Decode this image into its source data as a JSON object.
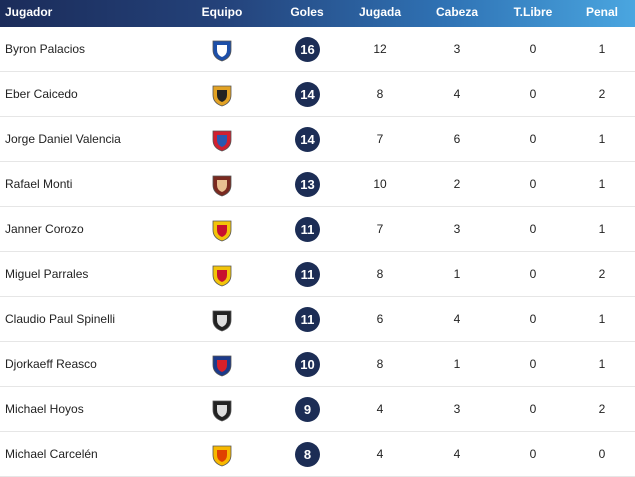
{
  "table": {
    "headers": [
      "Jugador",
      "Equipo",
      "Goles",
      "Jugada",
      "Cabeza",
      "T.Libre",
      "Penal"
    ],
    "rows": [
      {
        "player": "Byron Palacios",
        "goles": 16,
        "jugada": 12,
        "cabeza": 3,
        "tlibre": 0,
        "penal": 1
      },
      {
        "player": "Eber Caicedo",
        "goles": 14,
        "jugada": 8,
        "cabeza": 4,
        "tlibre": 0,
        "penal": 2
      },
      {
        "player": "Jorge Daniel Valencia",
        "goles": 14,
        "jugada": 7,
        "cabeza": 6,
        "tlibre": 0,
        "penal": 1
      },
      {
        "player": "Rafael Monti",
        "goles": 13,
        "jugada": 10,
        "cabeza": 2,
        "tlibre": 0,
        "penal": 1
      },
      {
        "player": "Janner Corozo",
        "goles": 11,
        "jugada": 7,
        "cabeza": 3,
        "tlibre": 0,
        "penal": 1
      },
      {
        "player": "Miguel Parrales",
        "goles": 11,
        "jugada": 8,
        "cabeza": 1,
        "tlibre": 0,
        "penal": 2
      },
      {
        "player": "Claudio Paul Spinelli",
        "goles": 11,
        "jugada": 6,
        "cabeza": 4,
        "tlibre": 0,
        "penal": 1
      },
      {
        "player": "Djorkaeff Reasco",
        "goles": 10,
        "jugada": 8,
        "cabeza": 1,
        "tlibre": 0,
        "penal": 1
      },
      {
        "player": "Michael Hoyos",
        "goles": 9,
        "jugada": 4,
        "cabeza": 3,
        "tlibre": 0,
        "penal": 2
      },
      {
        "player": "Michael Carcelén",
        "goles": 8,
        "jugada": 4,
        "cabeza": 4,
        "tlibre": 0,
        "penal": 0
      }
    ]
  }
}
